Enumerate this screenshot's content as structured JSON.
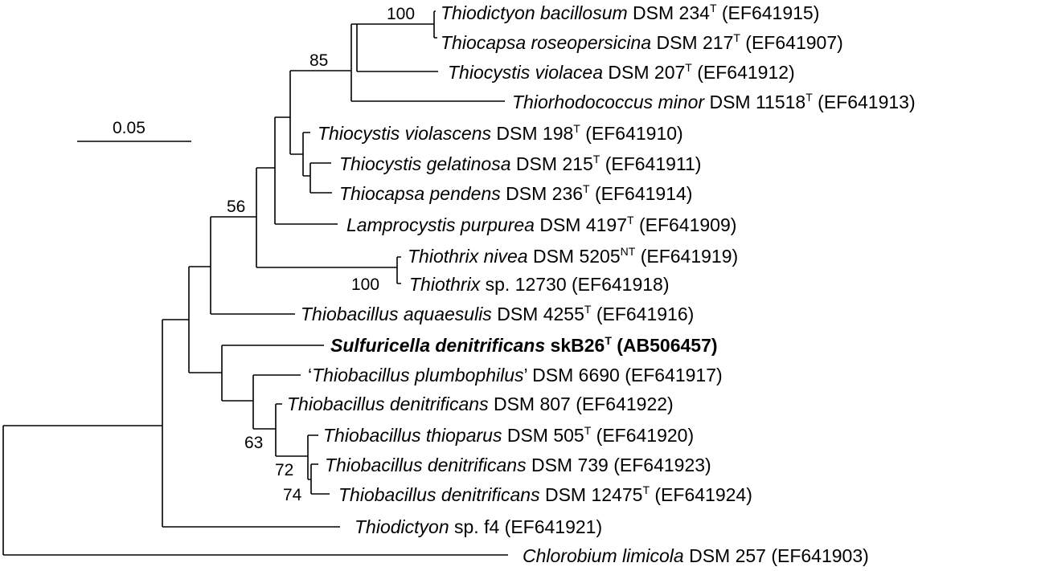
{
  "scale_bar": {
    "label": "0.05"
  },
  "taxa": [
    {
      "id": "t1",
      "name": "Thiodictyon bacillosum",
      "strain": " DSM 234",
      "sup": "T",
      "acc": " (EF641915)"
    },
    {
      "id": "t2",
      "name": "Thiocapsa roseopersicina",
      "strain": " DSM 217",
      "sup": "T",
      "acc": " (EF641907)"
    },
    {
      "id": "t3",
      "name": "Thiocystis violacea",
      "strain": " DSM 207",
      "sup": "T",
      "acc": " (EF641912)"
    },
    {
      "id": "t4",
      "name": "Thiorhodococcus minor",
      "strain": " DSM 11518",
      "sup": "T",
      "acc": " (EF641913)"
    },
    {
      "id": "t5",
      "name": "Thiocystis violascens",
      "strain": " DSM 198",
      "sup": "T",
      "acc": " (EF641910)"
    },
    {
      "id": "t6",
      "name": "Thiocystis gelatinosa",
      "strain": " DSM 215",
      "sup": "T",
      "acc": " (EF641911)"
    },
    {
      "id": "t7",
      "name": "Thiocapsa pendens",
      "strain": " DSM 236",
      "sup": "T",
      "acc": " (EF641914)"
    },
    {
      "id": "t8",
      "name": "Lamprocystis purpurea",
      "strain": " DSM 4197",
      "sup": "T",
      "acc": " (EF641909)"
    },
    {
      "id": "t9",
      "name": "Thiothrix nivea",
      "strain": " DSM 5205",
      "sup": "NT",
      "acc": " (EF641919)"
    },
    {
      "id": "t10",
      "name": "Thiothrix",
      "strain": " sp. 12730",
      "sup": "",
      "acc": " (EF641918)"
    },
    {
      "id": "t11",
      "name": "Thiobacillus aquaesulis",
      "strain": " DSM 4255",
      "sup": "T",
      "acc": " (EF641916)"
    },
    {
      "id": "t12",
      "name": "Sulfuricella denitrificans",
      "strain": " skB26",
      "sup": "T",
      "acc": " (AB506457)",
      "bold": true
    },
    {
      "id": "t13",
      "name": "Thiobacillus plumbophilus",
      "prefix": "‘",
      "suffix": "’",
      "strain": " DSM 6690",
      "sup": "",
      "acc": " (EF641917)"
    },
    {
      "id": "t14",
      "name": "Thiobacillus denitrificans",
      "strain": " DSM 807",
      "sup": "",
      "acc": " (EF641922)"
    },
    {
      "id": "t15",
      "name": "Thiobacillus thioparus",
      "strain": " DSM 505",
      "sup": "T",
      "acc": " (EF641920)"
    },
    {
      "id": "t16",
      "name": "Thiobacillus denitrificans",
      "strain": " DSM 739",
      "sup": "",
      "acc": " (EF641923)"
    },
    {
      "id": "t17",
      "name": "Thiobacillus denitrificans",
      "strain": " DSM 12475",
      "sup": "T",
      "acc": " (EF641924)"
    },
    {
      "id": "t18",
      "name": "Thiodictyon",
      "strain": " sp. f4",
      "sup": "",
      "acc": " (EF641921)"
    },
    {
      "id": "t19",
      "name": "Chlorobium limicola",
      "strain": " DSM 257",
      "sup": "",
      "acc": " (EF641903)"
    }
  ],
  "bootstrap": [
    {
      "id": "b1",
      "value": "100"
    },
    {
      "id": "b2",
      "value": "85"
    },
    {
      "id": "b3",
      "value": "56"
    },
    {
      "id": "b4",
      "value": "100"
    },
    {
      "id": "b5",
      "value": "63"
    },
    {
      "id": "b6",
      "value": "72"
    },
    {
      "id": "b7",
      "value": "74"
    }
  ]
}
